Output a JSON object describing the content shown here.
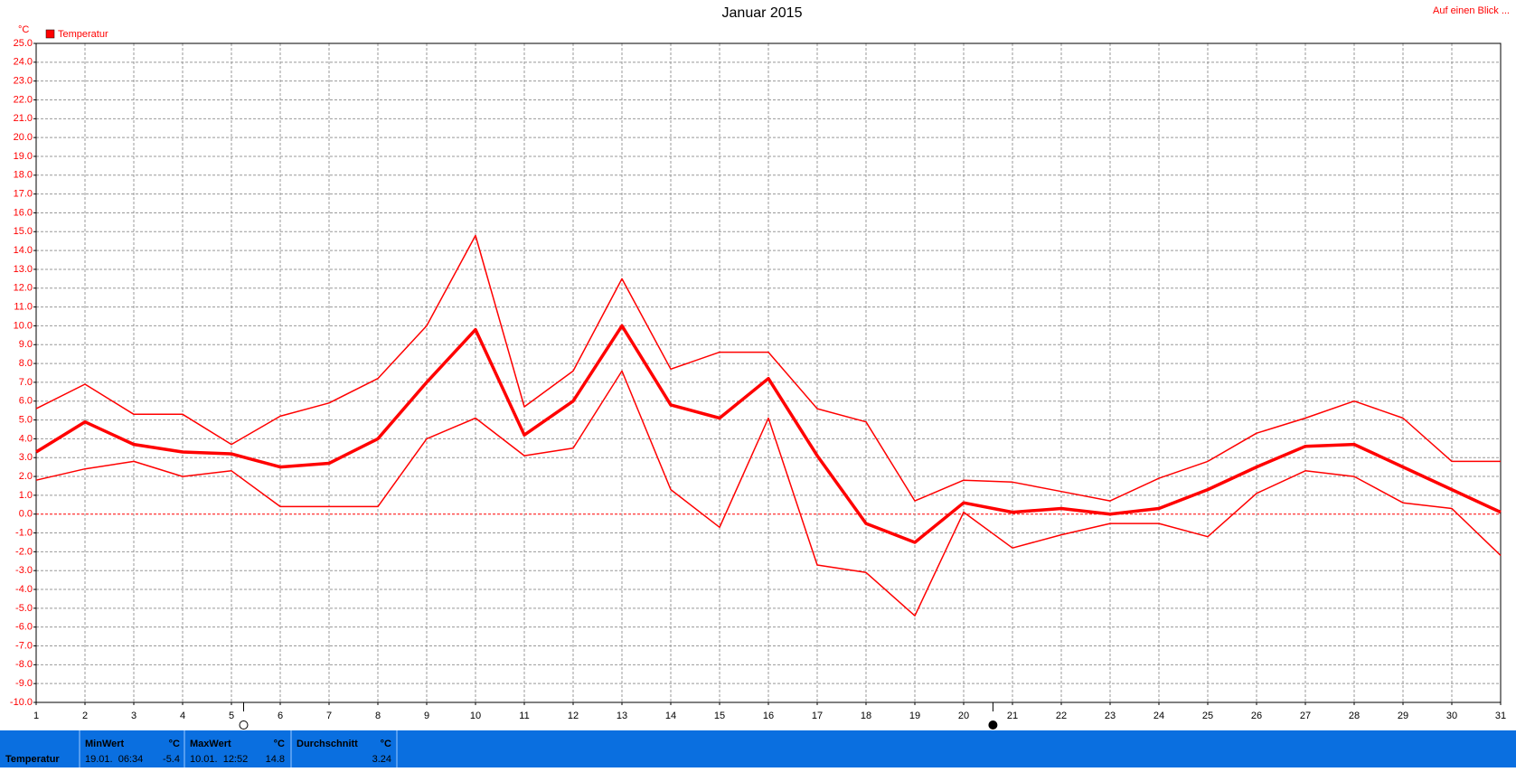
{
  "chart_data": {
    "type": "line",
    "title": "Januar 2015",
    "link_text": "Auf einen Blick ...",
    "y_label": "°C",
    "legend": "Temperatur",
    "legend_color": "#ff0000",
    "x": [
      1,
      2,
      3,
      4,
      5,
      6,
      7,
      8,
      9,
      10,
      11,
      12,
      13,
      14,
      15,
      16,
      17,
      18,
      19,
      20,
      21,
      22,
      23,
      24,
      25,
      26,
      27,
      28,
      29,
      30,
      31
    ],
    "xlim": [
      1,
      31
    ],
    "xticks": [
      1,
      2,
      3,
      4,
      5,
      6,
      7,
      8,
      9,
      10,
      11,
      12,
      13,
      14,
      15,
      16,
      17,
      18,
      19,
      20,
      21,
      22,
      23,
      24,
      25,
      26,
      27,
      28,
      29,
      30,
      31
    ],
    "ylim": [
      -10,
      25
    ],
    "yticks": [
      {
        "value": -10,
        "label": "-10.0"
      },
      {
        "value": -9,
        "label": "-9.0"
      },
      {
        "value": -8,
        "label": "-8.0"
      },
      {
        "value": -7,
        "label": "-7.0"
      },
      {
        "value": -6,
        "label": "-6.0"
      },
      {
        "value": -5,
        "label": "-5.0"
      },
      {
        "value": -4,
        "label": "-4.0"
      },
      {
        "value": -3,
        "label": "-3.0"
      },
      {
        "value": -2,
        "label": "-2.0"
      },
      {
        "value": -1,
        "label": "-1.0"
      },
      {
        "value": 0,
        "label": "0.0"
      },
      {
        "value": 1,
        "label": "1.0"
      },
      {
        "value": 2,
        "label": "2.0"
      },
      {
        "value": 3,
        "label": "3.0"
      },
      {
        "value": 4,
        "label": "4.0"
      },
      {
        "value": 5,
        "label": "5.0"
      },
      {
        "value": 6,
        "label": "6.0"
      },
      {
        "value": 7,
        "label": "7.0"
      },
      {
        "value": 8,
        "label": "8.0"
      },
      {
        "value": 9,
        "label": "9.0"
      },
      {
        "value": 10,
        "label": "10.0"
      },
      {
        "value": 11,
        "label": "11.0"
      },
      {
        "value": 12,
        "label": "12.0"
      },
      {
        "value": 13,
        "label": "13.0"
      },
      {
        "value": 14,
        "label": "14.0"
      },
      {
        "value": 15,
        "label": "15.0"
      },
      {
        "value": 16,
        "label": "16.0"
      },
      {
        "value": 17,
        "label": "17.0"
      },
      {
        "value": 18,
        "label": "18.0"
      },
      {
        "value": 19,
        "label": "19.0"
      },
      {
        "value": 20,
        "label": "20.0"
      },
      {
        "value": 21,
        "label": "21.0"
      },
      {
        "value": 22,
        "label": "22.0"
      },
      {
        "value": 23,
        "label": "23.0"
      },
      {
        "value": 24,
        "label": "24.0"
      },
      {
        "value": 25,
        "label": "25.0"
      }
    ],
    "grid": true,
    "zero_line": true,
    "series": [
      {
        "color": "#ff0000",
        "width": 1.5,
        "values": [
          5.6,
          6.9,
          5.3,
          5.3,
          3.7,
          5.2,
          5.9,
          7.2,
          10.0,
          14.8,
          5.7,
          7.6,
          12.5,
          7.7,
          8.6,
          8.6,
          5.6,
          4.9,
          0.7,
          1.8,
          1.7,
          1.2,
          0.7,
          1.9,
          2.8,
          4.3,
          5.1,
          6.0,
          5.1,
          2.8,
          2.8
        ]
      },
      {
        "color": "#ff0000",
        "width": 3.5,
        "values": [
          3.3,
          4.9,
          3.7,
          3.3,
          3.2,
          2.5,
          2.7,
          4.0,
          7.0,
          9.8,
          4.2,
          6.0,
          10.0,
          5.8,
          5.1,
          7.2,
          3.1,
          -0.5,
          -1.5,
          0.6,
          0.1,
          0.3,
          0.0,
          0.3,
          1.3,
          2.5,
          3.6,
          3.7,
          2.5,
          1.3,
          0.1
        ]
      },
      {
        "color": "#ff0000",
        "width": 1.5,
        "values": [
          1.8,
          2.4,
          2.8,
          2.0,
          2.3,
          0.4,
          0.4,
          0.4,
          4.0,
          5.1,
          3.1,
          3.5,
          7.6,
          1.3,
          -0.7,
          5.1,
          -2.7,
          -3.1,
          -5.4,
          0.1,
          -1.8,
          -1.1,
          -0.5,
          -0.5,
          -1.2,
          1.1,
          2.3,
          2.0,
          0.6,
          0.3,
          -2.2
        ]
      }
    ],
    "moon_markers": [
      {
        "x": 5.25,
        "filled": false
      },
      {
        "x": 20.6,
        "filled": true
      }
    ]
  },
  "stats": {
    "label": "Temperatur",
    "cells": [
      {
        "title": "MinWert",
        "unit": "°C",
        "time": "19.01.  06:34",
        "value": "-5.4"
      },
      {
        "title": "MaxWert",
        "unit": "°C",
        "time": "10.01.  12:52",
        "value": "14.8"
      },
      {
        "title": "Durchschnitt",
        "unit": "°C",
        "value": "3.24"
      }
    ]
  }
}
